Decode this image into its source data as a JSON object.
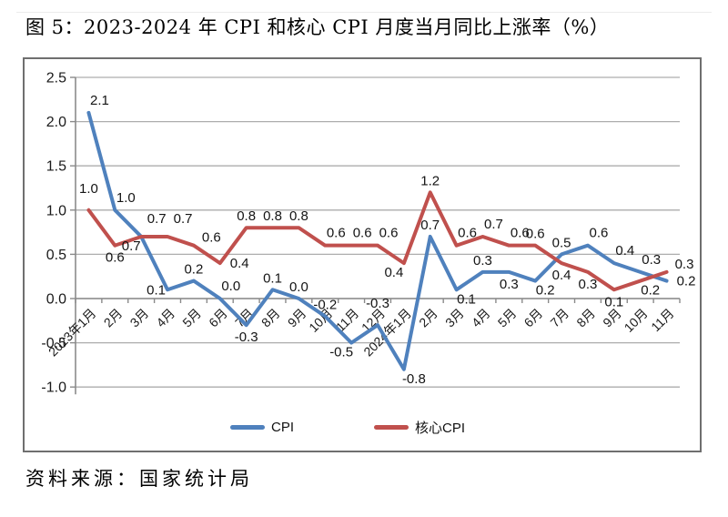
{
  "source_note": "资料来源：国家统计局",
  "chart_data": {
    "type": "line",
    "title": "图 5：2023-2024 年 CPI 和核心 CPI 月度当月同比上涨率（%）",
    "categories": [
      "2023年1月",
      "2月",
      "3月",
      "4月",
      "5月",
      "6月",
      "7月",
      "8月",
      "9月",
      "10月",
      "11月",
      "12月",
      "2024年1月",
      "2月",
      "3月",
      "4月",
      "5月",
      "6月",
      "7月",
      "8月",
      "9月",
      "10月",
      "11月"
    ],
    "series": [
      {
        "id": "cpi",
        "name": "CPI",
        "color": "#4F81BD",
        "values": [
          2.1,
          1.0,
          0.7,
          0.1,
          0.2,
          0.0,
          -0.3,
          0.1,
          0.0,
          -0.2,
          -0.5,
          -0.3,
          -0.8,
          0.7,
          0.1,
          0.3,
          0.3,
          0.2,
          0.5,
          0.6,
          0.4,
          0.3,
          0.2
        ],
        "label_pos": [
          "ar",
          "ar",
          "bl",
          "l",
          "a",
          "ar",
          "b",
          "a",
          "a",
          "a",
          "bl",
          "a2",
          "br",
          "a",
          "br",
          "a",
          "b",
          "br",
          "a",
          "ar",
          "ar",
          "ar",
          "r"
        ]
      },
      {
        "id": "core-cpi",
        "name": "核心CPI",
        "color": "#C0504D",
        "values": [
          1.0,
          0.6,
          0.7,
          0.7,
          0.6,
          0.4,
          0.8,
          0.8,
          0.8,
          0.6,
          0.6,
          0.6,
          0.4,
          1.2,
          0.6,
          0.7,
          0.6,
          0.6,
          0.4,
          0.3,
          0.1,
          0.2,
          0.3
        ],
        "label_pos": [
          "a2",
          "b",
          "ar2",
          "ar2",
          "ru",
          "r",
          "a",
          "a",
          "a",
          "ar",
          "ar",
          "ar",
          "bl",
          "a",
          "ar",
          "ar",
          "ar",
          "a",
          "b",
          "b",
          "b",
          "br",
          "ru"
        ]
      }
    ],
    "ylim": [
      -1.0,
      2.5
    ],
    "yticks": [
      2.5,
      2.0,
      1.5,
      1.0,
      0.5,
      0.0,
      -0.5,
      -1.0
    ],
    "label_decimals": 1,
    "grid": true,
    "legend_position": "bottom",
    "xlabel": "",
    "ylabel": ""
  },
  "style": {
    "grid_color": "#adadad",
    "axis_color": "#8a8a8a",
    "tick_label_color": "#1a1a1a",
    "data_label_color": "#141414"
  }
}
